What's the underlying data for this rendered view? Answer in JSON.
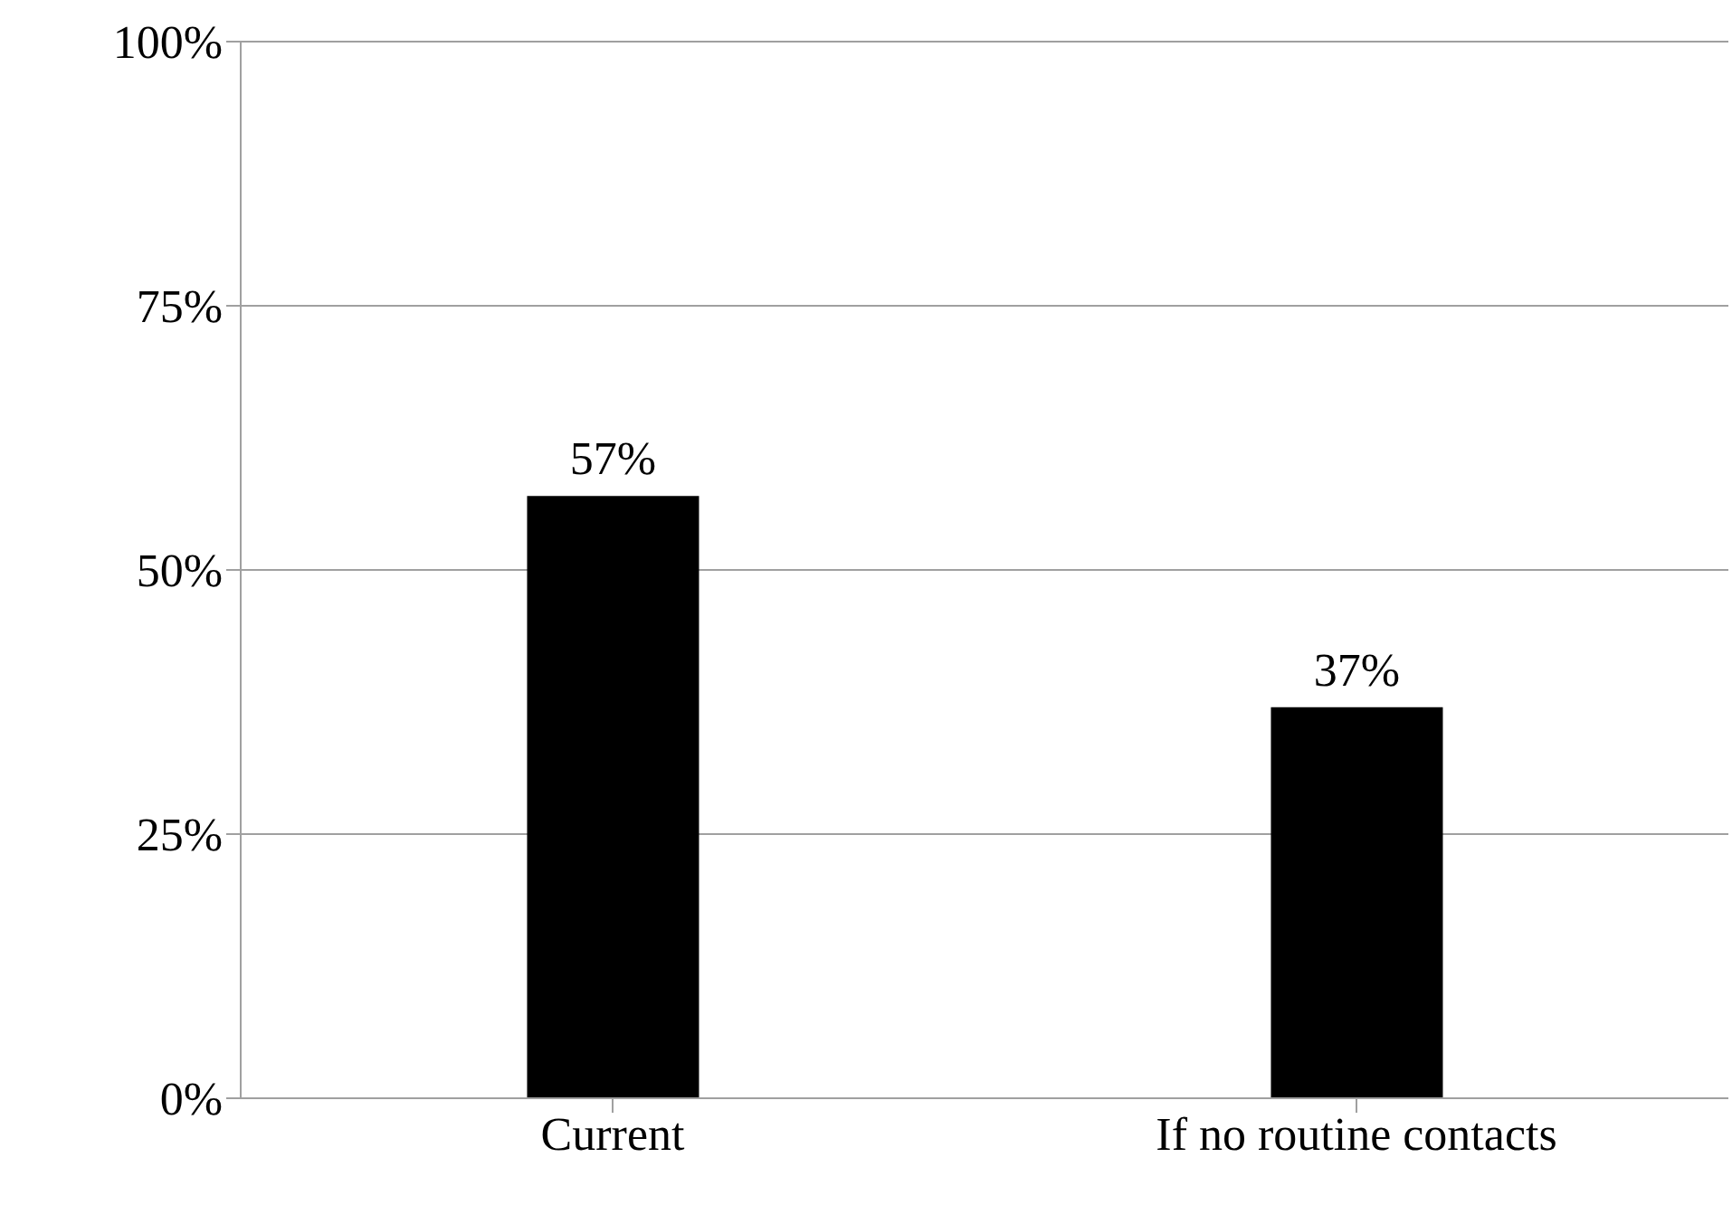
{
  "chart_data": {
    "type": "bar",
    "categories": [
      "Current",
      "If no routine contacts"
    ],
    "values": [
      57,
      37
    ],
    "value_labels": [
      "57%",
      "37%"
    ],
    "color": "#000000",
    "ylim": [
      0,
      100
    ],
    "yticks": [
      {
        "value": 0,
        "label": "0%"
      },
      {
        "value": 25,
        "label": "25%"
      },
      {
        "value": 50,
        "label": "50%"
      },
      {
        "value": 75,
        "label": "75%"
      },
      {
        "value": 100,
        "label": "100%"
      }
    ],
    "grid": "y",
    "legend": false
  }
}
